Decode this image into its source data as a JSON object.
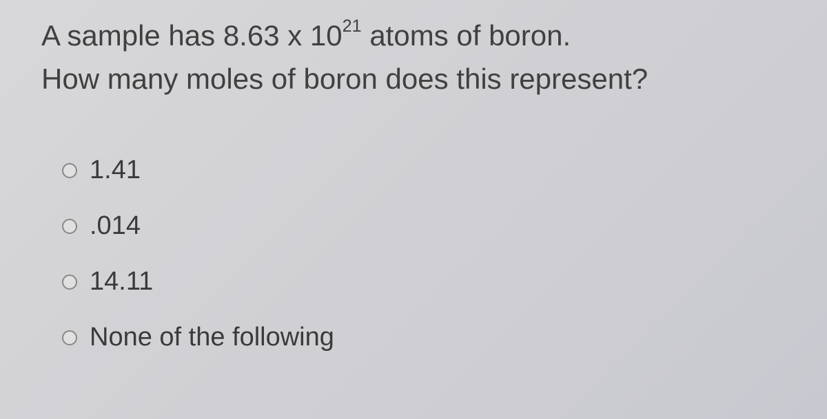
{
  "question": {
    "line1_pre": "A sample has 8.63 x 10",
    "line1_exp": "21",
    "line1_post": " atoms of boron.",
    "line2": "How many moles of boron does this represent?"
  },
  "options": [
    {
      "label": "1.41"
    },
    {
      "label": ".014"
    },
    {
      "label": "14.11"
    },
    {
      "label": "None of the following"
    }
  ],
  "colors": {
    "background_start": "#d8d8da",
    "background_end": "#c8c8d0",
    "text": "#3a3a3a",
    "radio_border": "#888888",
    "radio_bg": "#e0e0e0"
  },
  "typography": {
    "question_fontsize": 42,
    "option_fontsize": 38,
    "font_family": "Arial"
  }
}
